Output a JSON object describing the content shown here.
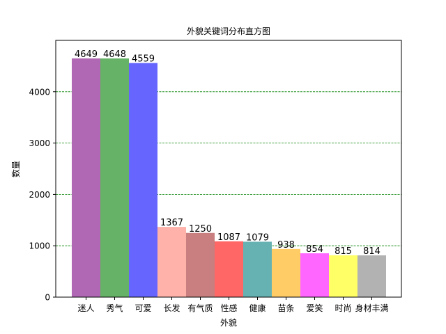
{
  "chart_data": {
    "type": "bar",
    "title": "外貌关键词分布直方图",
    "xlabel": "外貌",
    "ylabel": "数量",
    "categories": [
      "迷人",
      "秀气",
      "可爱",
      "长发",
      "有气质",
      "性感",
      "健康",
      "苗条",
      "爱笑",
      "时尚",
      "身材丰满"
    ],
    "values": [
      4649,
      4648,
      4559,
      1367,
      1250,
      1087,
      1079,
      938,
      854,
      815,
      814
    ],
    "bar_colors": [
      "#b067b4",
      "#66b266",
      "#6666ff",
      "#ffb2aa",
      "#c97f7f",
      "#ff6666",
      "#66b2b2",
      "#ffcc66",
      "#ff66ff",
      "#ffff66",
      "#b2b2b2"
    ],
    "ylim": [
      0,
      5000
    ],
    "yticks": [
      0,
      1000,
      2000,
      3000,
      4000
    ],
    "grid": {
      "axis": "y",
      "style": "dashed",
      "color": "#008000"
    }
  }
}
